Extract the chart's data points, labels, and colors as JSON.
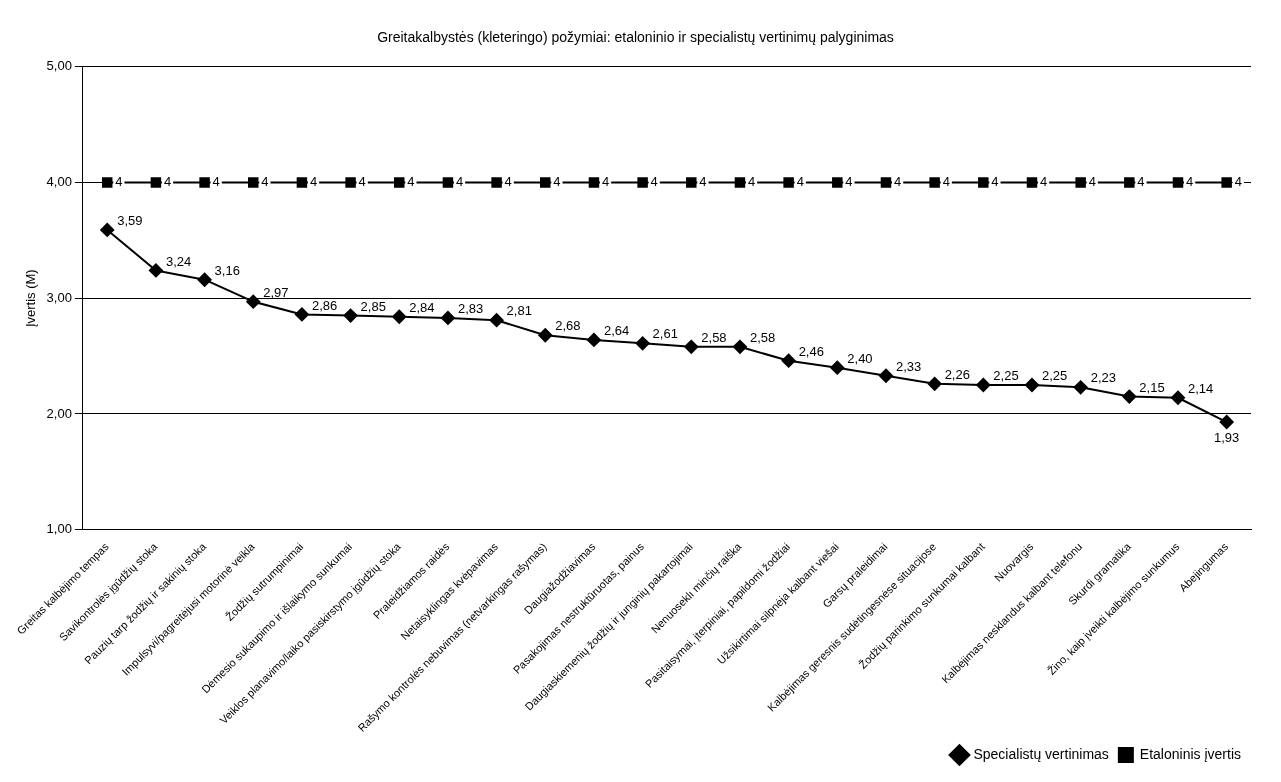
{
  "chart_data": {
    "type": "line",
    "title": "Greitakalbystės (kleteringo) požymiai: etaloninio ir specialistų vertinimų palyginimas",
    "ylabel": "Įvertis (M)",
    "categories": [
      "Greitas kalbėjimo tempas",
      "Savikontrolės įgūdžių stoka",
      "Pauzių tarp žodžių ir sakinių stoka",
      "Impulsyvi/pagreitėjusi motorinė veikla",
      "Žodžių sutrumpinimai",
      "Dėmesio sukaupimo ir išlaikymo sunkumai",
      "Veiklos planavimo/laiko pasiskirstymo įgūdžių stoka",
      "Praleidžiamos raidės",
      "Netaisyklingas kvėpavimas",
      "Rašymo kontrolės nebuvimas (netvarkingas rašymas)",
      "Daugiažodžiavimas",
      "Pasakojimas nestruktūruotas, painus",
      "Daugiaskiemenių žodžių ir junginių pakartojimai",
      "Nenuoseklı minčių raiška",
      "Pasitaisymai, įterpiniai, papildomi žodžiai",
      "Užsikirtimai silpnėja kalbant viešai",
      "Garsų praleidimai",
      "Kalbėjimas geresnis sudėtingesnėse situacijose",
      "Žodžių parinkimo sunkumai kalbant",
      "Nuovargis",
      "Kalbėjimas nesklandus kalbant telefonu",
      "Skurdi gramatika",
      "Žino, kaip įveikti kalbėjimo sunkumus",
      "Abejingumas"
    ],
    "series": [
      {
        "name": "Specialistų vertinimas",
        "color": "#000000",
        "marker": "diamond",
        "values": [
          3.59,
          3.24,
          3.16,
          2.97,
          2.86,
          2.85,
          2.84,
          2.83,
          2.81,
          2.68,
          2.64,
          2.61,
          2.58,
          2.58,
          2.46,
          2.4,
          2.33,
          2.26,
          2.25,
          2.25,
          2.23,
          2.15,
          2.14,
          1.93
        ],
        "value_labels": [
          "3,59",
          "3,24",
          "3,16",
          "2,97",
          "2,86",
          "2,85",
          "2,84",
          "2,83",
          "2,81",
          "2,68",
          "2,64",
          "2,61",
          "2,58",
          "2,58",
          "2,46",
          "2,40",
          "2,33",
          "2,26",
          "2,25",
          "2,25",
          "2,23",
          "2,15",
          "2,14",
          "1,93"
        ]
      },
      {
        "name": "Etaloninis įvertis",
        "color": "#000000",
        "marker": "square",
        "values": [
          4,
          4,
          4,
          4,
          4,
          4,
          4,
          4,
          4,
          4,
          4,
          4,
          4,
          4,
          4,
          4,
          4,
          4,
          4,
          4,
          4,
          4,
          4,
          4
        ],
        "value_labels": [
          "4",
          "4",
          "4",
          "4",
          "4",
          "4",
          "4",
          "4",
          "4",
          "4",
          "4",
          "4",
          "4",
          "4",
          "4",
          "4",
          "4",
          "4",
          "4",
          "4",
          "4",
          "4",
          "4",
          "4"
        ]
      }
    ],
    "ylim": [
      1,
      5
    ],
    "yticks": [
      {
        "value": 1,
        "label": "1,00"
      },
      {
        "value": 2,
        "label": "2,00"
      },
      {
        "value": 3,
        "label": "3,00"
      },
      {
        "value": 4,
        "label": "4,00"
      },
      {
        "value": 5,
        "label": "5,00"
      }
    ],
    "grid": "y",
    "legend": "bottom right",
    "line_style": "solid"
  }
}
